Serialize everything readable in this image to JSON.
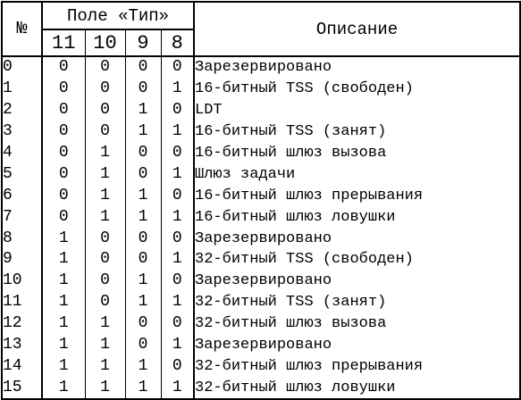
{
  "header": {
    "num": "№",
    "field": "Поле «Тип»",
    "bits": [
      "11",
      "10",
      "9",
      "8"
    ],
    "description": "Описание"
  },
  "rows": [
    {
      "num": "0",
      "bits": [
        "0",
        "0",
        "0",
        "0"
      ],
      "desc": "Зарезервировано"
    },
    {
      "num": "1",
      "bits": [
        "0",
        "0",
        "0",
        "1"
      ],
      "desc": "16-битный TSS (свободен)"
    },
    {
      "num": "2",
      "bits": [
        "0",
        "0",
        "1",
        "0"
      ],
      "desc": "LDT"
    },
    {
      "num": "3",
      "bits": [
        "0",
        "0",
        "1",
        "1"
      ],
      "desc": "16-битный TSS (занят)"
    },
    {
      "num": "4",
      "bits": [
        "0",
        "1",
        "0",
        "0"
      ],
      "desc": "16-битный шлюз вызова"
    },
    {
      "num": "5",
      "bits": [
        "0",
        "1",
        "0",
        "1"
      ],
      "desc": "Шлюз задачи"
    },
    {
      "num": "6",
      "bits": [
        "0",
        "1",
        "1",
        "0"
      ],
      "desc": "16-битный шлюз прерывания"
    },
    {
      "num": "7",
      "bits": [
        "0",
        "1",
        "1",
        "1"
      ],
      "desc": "16-битный шлюз ловушки"
    },
    {
      "num": "8",
      "bits": [
        "1",
        "0",
        "0",
        "0"
      ],
      "desc": "Зарезервировано"
    },
    {
      "num": "9",
      "bits": [
        "1",
        "0",
        "0",
        "1"
      ],
      "desc": "32-битный TSS (свободен)"
    },
    {
      "num": "10",
      "bits": [
        "1",
        "0",
        "1",
        "0"
      ],
      "desc": "Зарезервировано"
    },
    {
      "num": "11",
      "bits": [
        "1",
        "0",
        "1",
        "1"
      ],
      "desc": "32-битный TSS (занят)"
    },
    {
      "num": "12",
      "bits": [
        "1",
        "1",
        "0",
        "0"
      ],
      "desc": "32-битный шлюз вызова"
    },
    {
      "num": "13",
      "bits": [
        "1",
        "1",
        "0",
        "1"
      ],
      "desc": "Зарезервировано"
    },
    {
      "num": "14",
      "bits": [
        "1",
        "1",
        "1",
        "0"
      ],
      "desc": "32-битный шлюз прерывания"
    },
    {
      "num": "15",
      "bits": [
        "1",
        "1",
        "1",
        "1"
      ],
      "desc": "32-битный шлюз ловушки"
    }
  ]
}
